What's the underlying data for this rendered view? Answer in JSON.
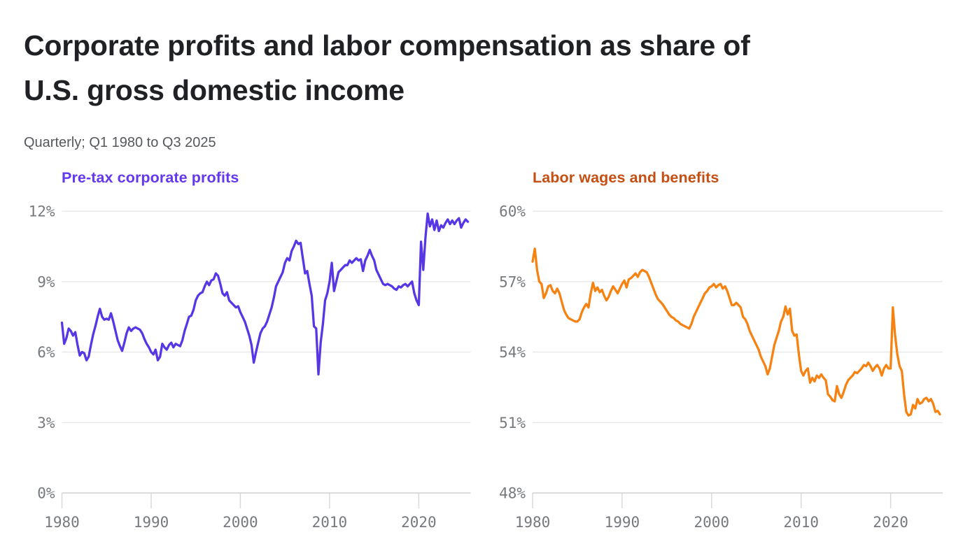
{
  "header": {
    "title": "Corporate profits and labor compensation as share of\nU.S. gross domestic income",
    "subtitle": "Quarterly; Q1 1980 to Q3 2025"
  },
  "colors": {
    "title_text": "#1f2124",
    "subtitle_text": "#55585c",
    "grid": "#e4e4e6",
    "axis": "#d6d7d9",
    "tick_text": "#76797d",
    "background": "#ffffff"
  },
  "chart_data": [
    {
      "type": "line",
      "title": "Pre-tax corporate profits",
      "name": "profits",
      "label_color": "#6438ef",
      "line_color": "#5736e6",
      "frequency": "quarterly",
      "x_start": 1980,
      "x_end": 2025.5,
      "x_step_years": 0.25,
      "ylim": [
        0,
        12
      ],
      "ytick_values": [
        0,
        3,
        6,
        9,
        12
      ],
      "ytick_labels": [
        "0%",
        "3%",
        "6%",
        "9%",
        "12%"
      ],
      "xtick_values": [
        1980,
        1990,
        2000,
        2010,
        2020
      ],
      "xtick_labels": [
        "1980",
        "1990",
        "2000",
        "2010",
        "2020"
      ],
      "unit": "% of U.S. gross domestic income",
      "values": [
        7.25,
        6.35,
        6.6,
        7.0,
        6.9,
        6.7,
        6.85,
        6.3,
        5.85,
        6.0,
        5.95,
        5.65,
        5.8,
        6.3,
        6.75,
        7.1,
        7.5,
        7.84,
        7.5,
        7.38,
        7.42,
        7.38,
        7.65,
        7.3,
        6.9,
        6.5,
        6.25,
        6.05,
        6.4,
        6.8,
        7.05,
        6.9,
        7.0,
        7.05,
        7.0,
        6.95,
        6.8,
        6.55,
        6.35,
        6.2,
        6.0,
        5.9,
        6.1,
        5.65,
        5.8,
        6.35,
        6.2,
        6.1,
        6.3,
        6.4,
        6.2,
        6.35,
        6.3,
        6.25,
        6.5,
        6.9,
        7.2,
        7.5,
        7.55,
        7.8,
        8.2,
        8.4,
        8.5,
        8.55,
        8.8,
        9.0,
        8.85,
        9.05,
        9.1,
        9.35,
        9.25,
        8.9,
        8.5,
        8.4,
        8.55,
        8.2,
        8.1,
        8.0,
        7.9,
        7.95,
        7.7,
        7.5,
        7.3,
        7.0,
        6.7,
        6.3,
        5.55,
        6.0,
        6.4,
        6.8,
        7.0,
        7.1,
        7.3,
        7.6,
        7.9,
        8.3,
        8.8,
        9.0,
        9.2,
        9.4,
        9.8,
        10.0,
        9.9,
        10.3,
        10.5,
        10.74,
        10.6,
        10.65,
        10.0,
        9.35,
        9.45,
        8.9,
        8.4,
        7.1,
        7.0,
        5.05,
        6.4,
        7.2,
        8.2,
        8.5,
        9.0,
        9.8,
        8.6,
        9.0,
        9.4,
        9.5,
        9.6,
        9.7,
        9.7,
        9.9,
        9.8,
        9.9,
        10.0,
        9.9,
        9.95,
        9.45,
        9.9,
        10.1,
        10.35,
        10.1,
        9.9,
        9.5,
        9.3,
        9.1,
        8.9,
        8.85,
        8.9,
        8.85,
        8.8,
        8.7,
        8.65,
        8.8,
        8.75,
        8.85,
        8.9,
        8.8,
        8.9,
        9.0,
        8.5,
        8.2,
        8.0,
        10.7,
        9.5,
        10.9,
        11.9,
        11.35,
        11.65,
        11.2,
        11.6,
        11.15,
        11.4,
        11.3,
        11.5,
        11.65,
        11.45,
        11.6,
        11.45,
        11.6,
        11.7,
        11.3,
        11.5,
        11.65,
        11.55
      ]
    },
    {
      "type": "line",
      "title": "Labor wages and benefits",
      "name": "labor",
      "label_color": "#c54e12",
      "line_color": "#f68212",
      "frequency": "quarterly",
      "x_start": 1980,
      "x_end": 2025.5,
      "x_step_years": 0.25,
      "ylim": [
        48,
        60
      ],
      "ytick_values": [
        48,
        51,
        54,
        57,
        60
      ],
      "ytick_labels": [
        "48%",
        "51%",
        "54%",
        "57%",
        "60%"
      ],
      "xtick_values": [
        1980,
        1990,
        2000,
        2010,
        2020
      ],
      "xtick_labels": [
        "1980",
        "1990",
        "2000",
        "2010",
        "2020"
      ],
      "unit": "% of U.S. gross domestic income",
      "values": [
        57.85,
        58.4,
        57.5,
        57.0,
        56.9,
        56.3,
        56.5,
        56.8,
        56.85,
        56.6,
        56.5,
        56.7,
        56.5,
        56.15,
        55.8,
        55.6,
        55.45,
        55.4,
        55.35,
        55.3,
        55.3,
        55.4,
        55.7,
        55.9,
        56.05,
        55.9,
        56.5,
        56.95,
        56.6,
        56.75,
        56.55,
        56.65,
        56.4,
        56.2,
        56.35,
        56.6,
        56.8,
        56.65,
        56.5,
        56.7,
        56.9,
        57.05,
        56.75,
        57.1,
        57.15,
        57.25,
        57.35,
        57.2,
        57.4,
        57.5,
        57.45,
        57.4,
        57.2,
        56.95,
        56.7,
        56.45,
        56.25,
        56.15,
        56.05,
        55.9,
        55.75,
        55.6,
        55.5,
        55.45,
        55.35,
        55.3,
        55.2,
        55.15,
        55.1,
        55.05,
        55.0,
        55.2,
        55.5,
        55.7,
        55.9,
        56.1,
        56.3,
        56.5,
        56.6,
        56.75,
        56.8,
        56.9,
        56.75,
        56.85,
        56.9,
        56.7,
        56.8,
        56.6,
        56.3,
        56.0,
        56.0,
        56.1,
        56.0,
        55.9,
        55.5,
        55.4,
        55.2,
        54.9,
        54.7,
        54.5,
        54.3,
        54.1,
        53.8,
        53.6,
        53.4,
        53.05,
        53.3,
        53.8,
        54.3,
        54.6,
        54.9,
        55.3,
        55.5,
        55.94,
        55.6,
        55.85,
        54.9,
        54.7,
        54.75,
        53.9,
        53.2,
        53.0,
        53.2,
        53.3,
        52.7,
        52.9,
        52.75,
        53.0,
        52.9,
        53.05,
        52.9,
        52.8,
        52.2,
        52.1,
        51.95,
        51.9,
        52.55,
        52.2,
        52.05,
        52.3,
        52.6,
        52.8,
        52.9,
        53.0,
        53.15,
        53.1,
        53.2,
        53.3,
        53.45,
        53.4,
        53.55,
        53.4,
        53.2,
        53.35,
        53.45,
        53.3,
        53.0,
        53.3,
        53.45,
        53.3,
        53.3,
        55.9,
        54.7,
        53.9,
        53.4,
        53.2,
        52.2,
        51.45,
        51.3,
        51.35,
        51.75,
        51.6,
        52.0,
        51.8,
        51.85,
        52.0,
        52.05,
        51.9,
        52.0,
        51.8,
        51.45,
        51.5,
        51.35
      ]
    }
  ]
}
